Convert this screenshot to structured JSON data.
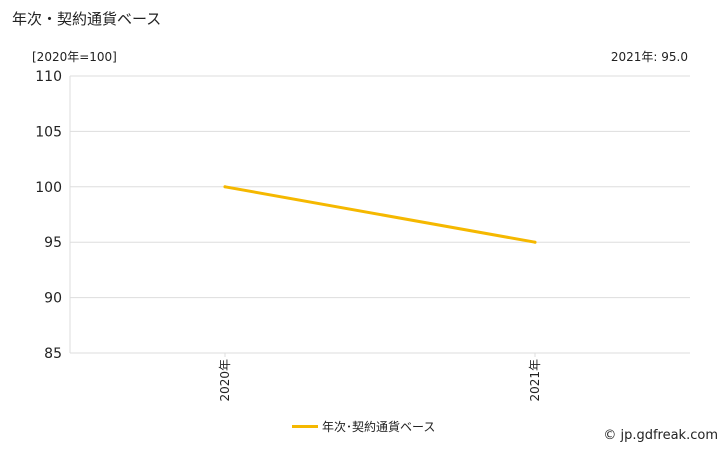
{
  "title": "年次・契約通貨ベース",
  "unit_label": "[2020年=100]",
  "latest_value": "2021年: 95.0",
  "copyright": "© jp.gdfreak.com",
  "colors": {
    "series": "#f5b800",
    "grid": "#dddddd"
  },
  "chart_data": {
    "type": "line",
    "title": "年次・契約通貨ベース",
    "categories": [
      "2020年",
      "2021年"
    ],
    "series": [
      {
        "name": "年次･契約通貨ベース",
        "values": [
          100.0,
          95.0
        ]
      }
    ],
    "ylim": [
      85,
      110
    ],
    "yticks": [
      85,
      90,
      95,
      100,
      105,
      110
    ],
    "grid": true,
    "legend_position": "bottom"
  }
}
